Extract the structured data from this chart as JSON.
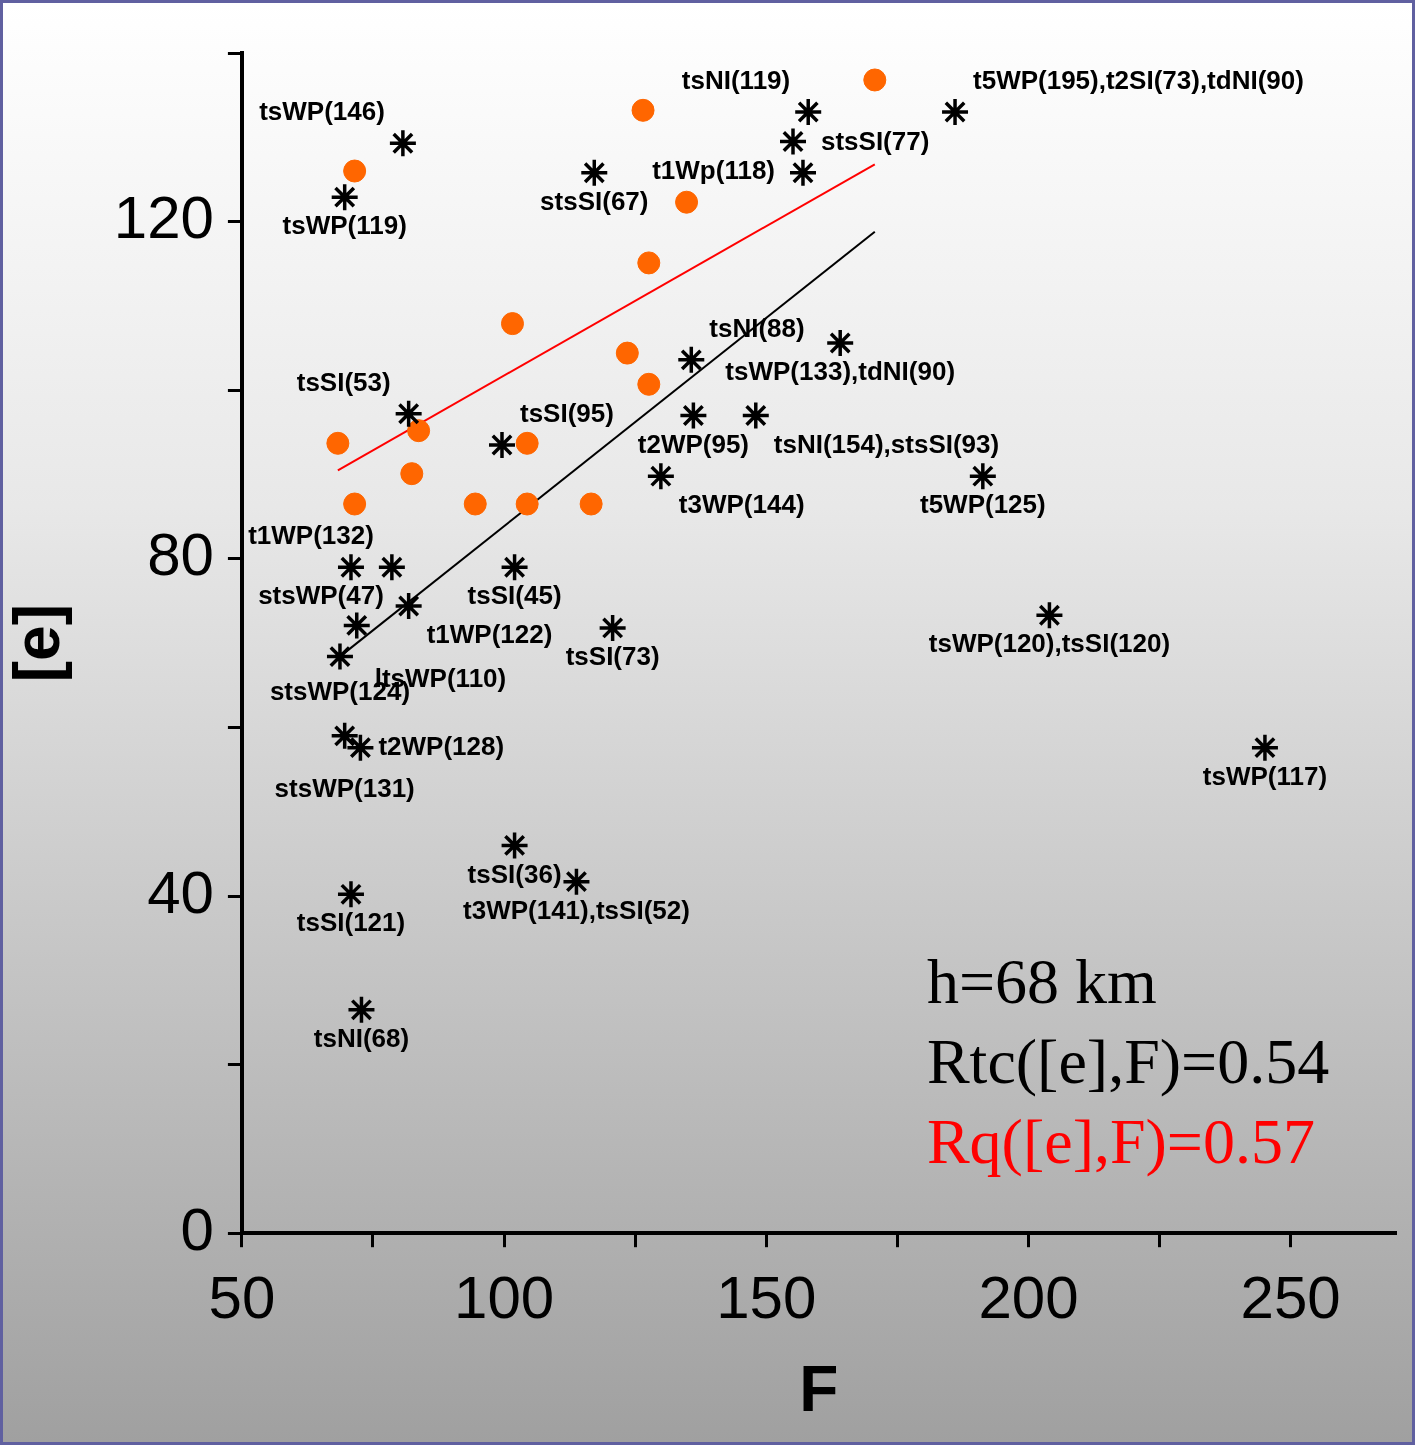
{
  "chart_data": {
    "type": "scatter",
    "xlabel": "F",
    "ylabel": "[e]",
    "xlim": [
      50,
      270
    ],
    "ylim": [
      0,
      140
    ],
    "xticks": [
      50,
      {
        "value": 75,
        "label": null
      },
      100,
      {
        "value": 125,
        "label": null
      },
      150,
      {
        "value": 175,
        "label": null
      },
      200,
      {
        "value": 225,
        "label": null
      },
      250
    ],
    "yticks": [
      0,
      {
        "value": 20,
        "label": null
      },
      40,
      {
        "value": 60,
        "label": null
      },
      80,
      {
        "value": 100,
        "label": null
      },
      120,
      {
        "value": 140,
        "label": null
      }
    ],
    "grid": false,
    "legend": false,
    "series": [
      {
        "marker": "cross",
        "color": "#000000",
        "x": [
          80.7,
          69.6,
          117.2,
          158,
          186,
          155.1,
          157,
          164.1,
          135.7,
          136.1,
          148,
          129.9,
          191.3,
          81.8,
          99.6,
          70.8,
          78.6,
          102,
          81.8,
          71.9,
          120.7,
          68.7,
          204,
          245.1,
          69.6,
          72.6,
          102,
          113.8,
          70.8,
          72.8
        ],
        "values": [
          129.3,
          122.9,
          125.8,
          133,
          133,
          129.5,
          125.8,
          105.6,
          103.6,
          97,
          97,
          89.8,
          89.8,
          97.2,
          93.5,
          79,
          79,
          79,
          74.4,
          72.1,
          71.8,
          68.4,
          73.3,
          57.6,
          59,
          57.6,
          46,
          41.7,
          40.2,
          26.5
        ]
      },
      {
        "marker": "circle",
        "color": "#ff6600",
        "x": [
          170.7,
          126.5,
          71.5,
          134.8,
          127.6,
          101.6,
          123.5,
          127.6,
          68.3,
          83.7,
          104.4,
          82.4,
          71.5,
          94.5,
          104.4,
          116.6
        ],
        "values": [
          136.8,
          133.2,
          126,
          122.3,
          115.1,
          107.9,
          104.4,
          100.7,
          93.7,
          95.2,
          93.7,
          90.1,
          86.5,
          86.5,
          86.5,
          86.5
        ]
      },
      {
        "type": "line",
        "color": "#ff0000",
        "x": [
          68.3,
          170.7
        ],
        "values": [
          90.5,
          126.8
        ]
      },
      {
        "type": "line",
        "color": "#000000",
        "x": [
          69.1,
          170.7
        ],
        "values": [
          68.6,
          118.8
        ]
      }
    ],
    "annotations": [
      {
        "text": "tsWP(146)",
        "x": 80.7,
        "y": 129.3
      },
      {
        "text": "tsWP(119)",
        "x": 69.6,
        "y": 122.9
      },
      {
        "text": "stsSI(67)",
        "x": 117.2,
        "y": 125.8
      },
      {
        "text": "tsNI(119)",
        "x": 158,
        "y": 133
      },
      {
        "text": "t5WP(195),t2SI(73),tdNI(90)",
        "x": 186,
        "y": 133
      },
      {
        "text": "t1Wp(118)",
        "x": 155.1,
        "y": 129.5
      },
      {
        "text": "stsSI(77)",
        "x": 157,
        "y": 125.8
      },
      {
        "text": "tsWP(133),tdNI(90)",
        "x": 164.1,
        "y": 105.6
      },
      {
        "text": "tsNI(88)",
        "x": 135.7,
        "y": 103.6
      },
      {
        "text": "t2WP(95)",
        "x": 136.1,
        "y": 97
      },
      {
        "text": "tsNI(154),stsSI(93)",
        "x": 148,
        "y": 97
      },
      {
        "text": "t3WP(144)",
        "x": 129.9,
        "y": 89.8
      },
      {
        "text": "t5WP(125)",
        "x": 191.3,
        "y": 89.8
      },
      {
        "text": "tsSI(53)",
        "x": 81.8,
        "y": 97.2
      },
      {
        "text": "tsSI(95)",
        "x": 99.6,
        "y": 93.5
      },
      {
        "text": "stsWP(47)",
        "x": 70.8,
        "y": 79
      },
      {
        "text": "t1WP(132)",
        "x": 78.6,
        "y": 79
      },
      {
        "text": "tsSI(45)",
        "x": 102,
        "y": 79
      },
      {
        "text": "t1WP(122)",
        "x": 81.8,
        "y": 74.4
      },
      {
        "text": "ltsWP(110)",
        "x": 71.9,
        "y": 72.1
      },
      {
        "text": "tsSI(73)",
        "x": 120.7,
        "y": 71.8
      },
      {
        "text": "stsWP(124)",
        "x": 68.7,
        "y": 68.4
      },
      {
        "text": "tsWP(120),tsSI(120)",
        "x": 204,
        "y": 73.3
      },
      {
        "text": "tsWP(117)",
        "x": 245.1,
        "y": 57.6
      },
      {
        "text": "stsWP(131)",
        "x": 69.6,
        "y": 59
      },
      {
        "text": "t2WP(128)",
        "x": 72.6,
        "y": 57.6
      },
      {
        "text": "tsSI(36)",
        "x": 102,
        "y": 46
      },
      {
        "text": "t3WP(141),tsSI(52)",
        "x": 113.8,
        "y": 41.7
      },
      {
        "text": "tsSI(121)",
        "x": 70.8,
        "y": 40.2
      },
      {
        "text": "tsNI(68)",
        "x": 72.8,
        "y": 26.5
      },
      "h=68 km",
      "Rtc([e],F)=0.54",
      "Rq([e],F)=0.57"
    ]
  }
}
